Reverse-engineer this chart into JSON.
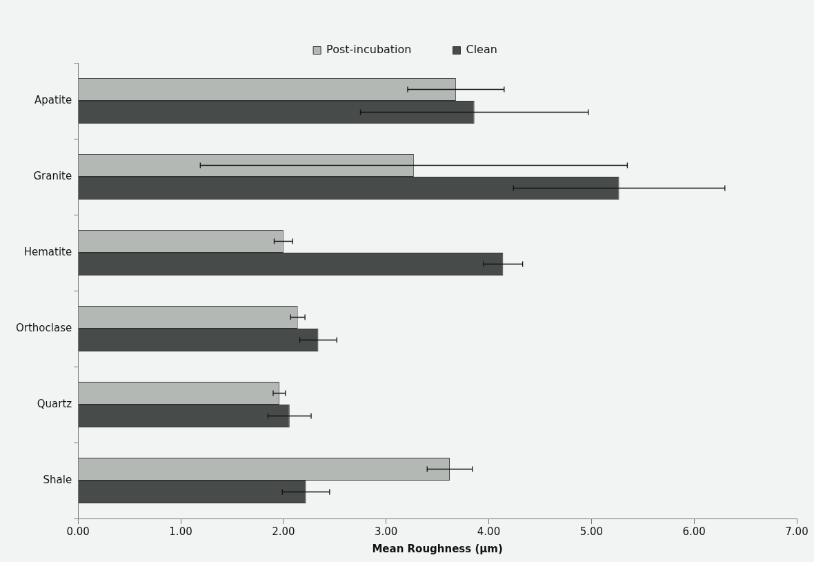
{
  "chart_data": {
    "type": "bar",
    "orientation": "horizontal",
    "xlabel": "Mean Roughness (µm)",
    "categories": [
      "Apatite",
      "Granite",
      "Hematite",
      "Orthoclase",
      "Quartz",
      "Shale"
    ],
    "series": [
      {
        "name": "Post-incubation",
        "color": "#b4b8b5",
        "values": [
          3.68,
          3.27,
          2.0,
          2.14,
          1.96,
          3.62
        ],
        "errors": [
          0.47,
          2.08,
          0.09,
          0.07,
          0.06,
          0.22
        ]
      },
      {
        "name": "Clean",
        "color": "#474c4a",
        "values": [
          3.86,
          5.27,
          4.14,
          2.34,
          2.06,
          2.22
        ],
        "errors": [
          1.11,
          1.03,
          0.19,
          0.18,
          0.21,
          0.23
        ]
      }
    ],
    "xlim": [
      0,
      7
    ],
    "xticks": [
      {
        "value": 0,
        "label": "0.00"
      },
      {
        "value": 1,
        "label": "1.00"
      },
      {
        "value": 2,
        "label": "2.00"
      },
      {
        "value": 3,
        "label": "3.00"
      },
      {
        "value": 4,
        "label": "4.00"
      },
      {
        "value": 5,
        "label": "5.00"
      },
      {
        "value": 6,
        "label": "6.00"
      },
      {
        "value": 7,
        "label": "7.00"
      }
    ],
    "grid": false,
    "legend": "top"
  }
}
